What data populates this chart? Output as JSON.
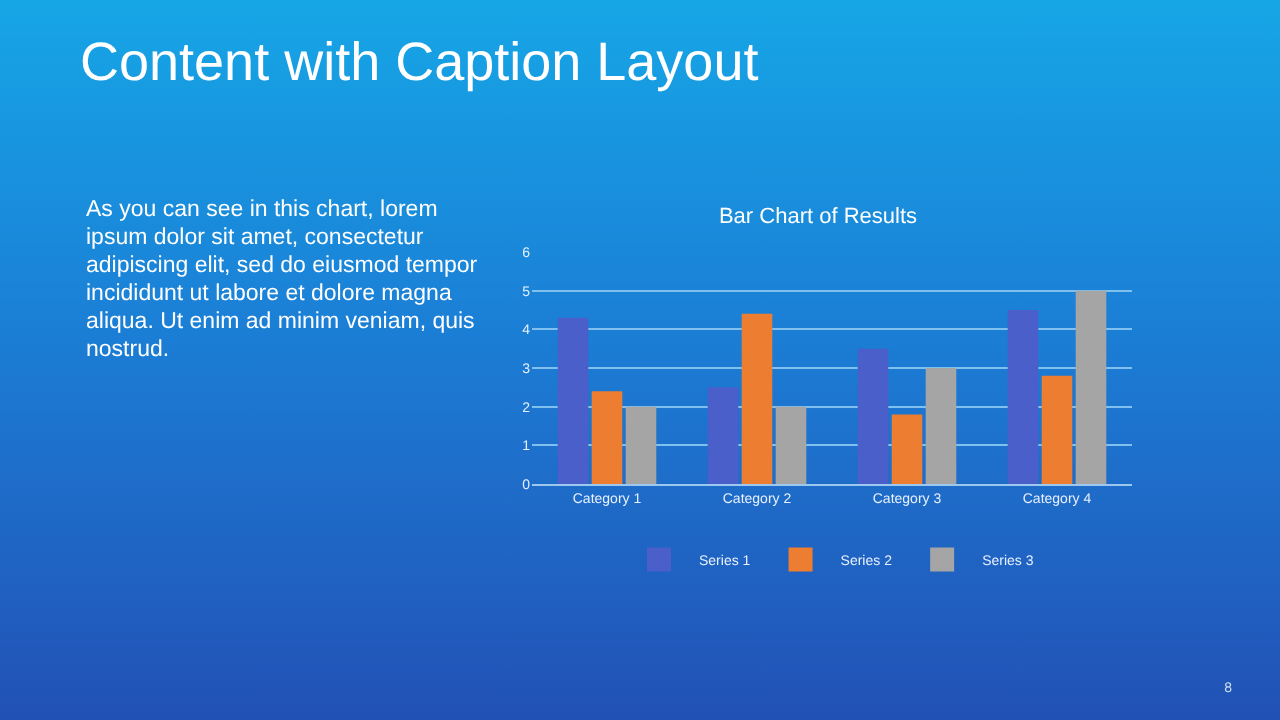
{
  "chart_data": {
    "type": "bar",
    "title": "Bar Chart of Results",
    "categories": [
      "Category 1",
      "Category 2",
      "Category 3",
      "Category 4"
    ],
    "series": [
      {
        "name": "Series 1",
        "color": "#4a5fc9",
        "values": [
          4.3,
          2.5,
          3.5,
          4.5
        ]
      },
      {
        "name": "Series 2",
        "color": "#ed7d31",
        "values": [
          2.4,
          4.4,
          1.8,
          2.8
        ]
      },
      {
        "name": "Series 3",
        "color": "#a5a5a5",
        "values": [
          2,
          2,
          3,
          5
        ]
      }
    ],
    "ylim": [
      0,
      6
    ],
    "yticks": [
      0,
      1,
      2,
      3,
      4,
      5,
      6
    ],
    "grid": "y",
    "legend": "bottom",
    "annotations": [
      "Content with Caption Layout",
      "As you can see in this chart, lorem ipsum dolor sit amet, consectetur adipiscing elit, sed do eiusmod tempor incididunt ut labore et dolore magna aliqua. Ut enim ad minim veniam, quis nostrud.",
      "8"
    ]
  }
}
